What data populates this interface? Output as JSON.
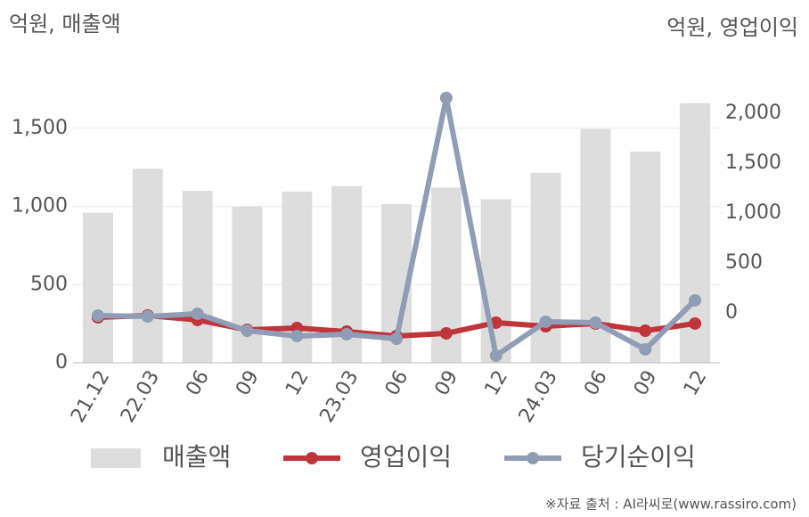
{
  "chart_data": {
    "type": "bar-line",
    "y_label": "억원, 매출액",
    "y2_label": "억원, 영업이익",
    "source": "※자료 출처 : AI라씨로(www.rassiro.com)",
    "categories": [
      "21.12",
      "22.03",
      "06",
      "09",
      "12",
      "23.03",
      "06",
      "09",
      "12",
      "24.03",
      "06",
      "09",
      "12"
    ],
    "ylim": [
      0,
      1750
    ],
    "yticks": [
      0,
      500,
      {
        "value": 1000,
        "label": "1,000"
      },
      {
        "value": 1500,
        "label": "1,500"
      }
    ],
    "y2lim": [
      -500,
      2240
    ],
    "y2ticks": [
      0,
      500,
      {
        "value": 1000,
        "label": "1,000"
      },
      {
        "value": 1500,
        "label": "1,500"
      },
      {
        "value": 2000,
        "label": "2,000"
      }
    ],
    "grid": true,
    "series": [
      {
        "name": "매출액",
        "type": "bar",
        "color": "#dddddd",
        "values": [
          960,
          1240,
          1100,
          1000,
          1095,
          1130,
          1015,
          1120,
          1045,
          1215,
          1495,
          1350,
          1660
        ]
      },
      {
        "name": "영업이익",
        "type": "line",
        "axis": "y2",
        "color": "#c0353a",
        "values": [
          -45,
          -27,
          -71,
          -170,
          -152,
          -188,
          -232,
          -205,
          -98,
          -134,
          -107,
          -179,
          -107
        ]
      },
      {
        "name": "당기순이익",
        "type": "line",
        "axis": "y2",
        "color": "#919cb5",
        "values": [
          -27,
          -36,
          -9,
          -179,
          -232,
          -214,
          -259,
          2152,
          -429,
          -89,
          -98,
          -366,
          125
        ]
      }
    ]
  }
}
